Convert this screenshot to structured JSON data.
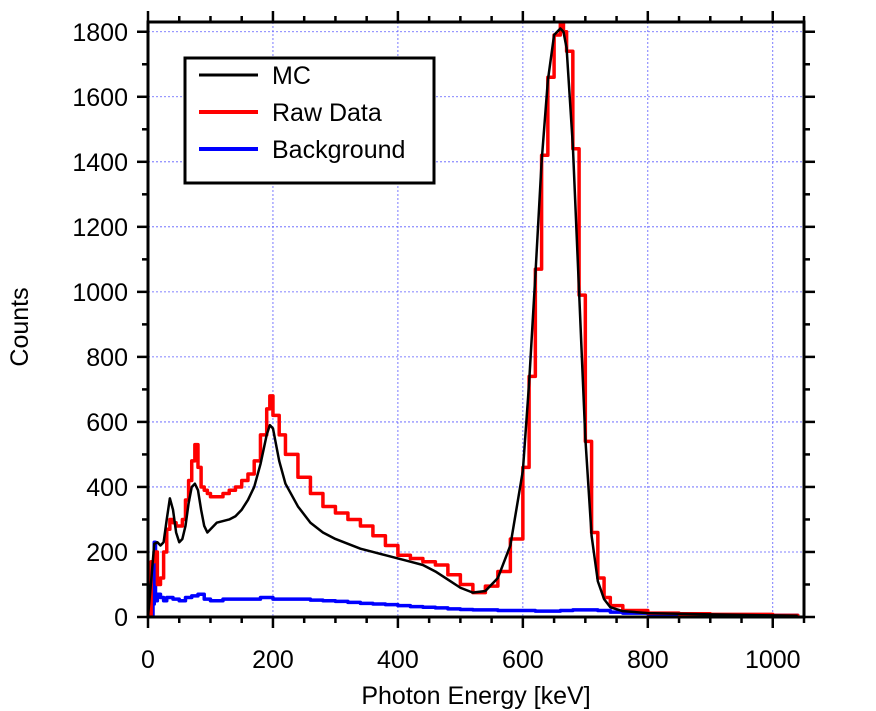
{
  "chart_data": {
    "type": "line",
    "title": "",
    "xlabel": "Photon Energy [keV]",
    "ylabel": "Counts",
    "xlim": [
      0,
      1050
    ],
    "ylim": [
      0,
      1830
    ],
    "x_ticks": [
      0,
      200,
      400,
      600,
      800,
      1000
    ],
    "y_ticks": [
      0,
      200,
      400,
      600,
      800,
      1000,
      1200,
      1400,
      1600,
      1800
    ],
    "grid": true,
    "legend_position": "top-left",
    "series": [
      {
        "name": "MC",
        "color": "#000000",
        "x": [
          0,
          5,
          10,
          15,
          20,
          25,
          30,
          35,
          40,
          45,
          50,
          55,
          60,
          65,
          70,
          75,
          80,
          85,
          90,
          95,
          100,
          110,
          120,
          130,
          140,
          150,
          160,
          170,
          180,
          190,
          195,
          200,
          210,
          220,
          240,
          260,
          280,
          300,
          320,
          340,
          360,
          380,
          400,
          420,
          440,
          460,
          480,
          500,
          520,
          540,
          560,
          580,
          600,
          610,
          620,
          630,
          640,
          650,
          660,
          665,
          670,
          680,
          690,
          700,
          710,
          720,
          730,
          740,
          760,
          800,
          850,
          900,
          1000,
          1040
        ],
        "y": [
          0,
          110,
          225,
          230,
          220,
          230,
          300,
          365,
          330,
          260,
          230,
          240,
          280,
          350,
          400,
          410,
          390,
          330,
          280,
          260,
          270,
          290,
          295,
          300,
          310,
          330,
          360,
          400,
          470,
          560,
          590,
          580,
          480,
          410,
          340,
          290,
          260,
          240,
          225,
          210,
          200,
          190,
          180,
          170,
          160,
          140,
          115,
          90,
          75,
          80,
          120,
          220,
          450,
          720,
          1050,
          1400,
          1650,
          1790,
          1810,
          1800,
          1750,
          1450,
          1000,
          550,
          250,
          110,
          55,
          30,
          18,
          12,
          10,
          8,
          5,
          4
        ]
      },
      {
        "name": "Raw Data",
        "color": "#ff0000",
        "x": [
          0,
          5,
          10,
          15,
          20,
          25,
          30,
          35,
          40,
          45,
          50,
          55,
          60,
          65,
          70,
          75,
          80,
          85,
          90,
          95,
          100,
          110,
          120,
          130,
          140,
          150,
          160,
          170,
          180,
          190,
          195,
          200,
          210,
          220,
          240,
          260,
          280,
          300,
          320,
          340,
          360,
          380,
          400,
          420,
          440,
          460,
          480,
          500,
          520,
          540,
          560,
          580,
          600,
          610,
          620,
          630,
          640,
          650,
          660,
          665,
          670,
          680,
          690,
          700,
          710,
          720,
          730,
          740,
          760,
          800,
          850,
          900,
          1000,
          1040
        ],
        "y": [
          0,
          170,
          200,
          100,
          120,
          200,
          270,
          300,
          290,
          280,
          280,
          300,
          360,
          420,
          480,
          530,
          460,
          400,
          390,
          380,
          370,
          370,
          380,
          390,
          400,
          420,
          440,
          480,
          560,
          640,
          680,
          620,
          560,
          500,
          430,
          380,
          340,
          320,
          300,
          280,
          250,
          220,
          190,
          180,
          170,
          160,
          130,
          100,
          75,
          95,
          140,
          240,
          460,
          740,
          1070,
          1420,
          1660,
          1790,
          1830,
          1800,
          1740,
          1440,
          990,
          540,
          260,
          120,
          60,
          35,
          20,
          12,
          10,
          8,
          5,
          4
        ]
      },
      {
        "name": "Background",
        "color": "#0000ff",
        "x": [
          0,
          5,
          8,
          10,
          12,
          15,
          20,
          25,
          30,
          40,
          50,
          60,
          70,
          80,
          90,
          100,
          120,
          140,
          160,
          180,
          200,
          220,
          240,
          260,
          280,
          300,
          320,
          340,
          360,
          380,
          400,
          420,
          440,
          460,
          480,
          500,
          520,
          540,
          560,
          580,
          600,
          620,
          640,
          660,
          680,
          700,
          720,
          740,
          760,
          800,
          850,
          900,
          1000,
          1040
        ],
        "y": [
          0,
          0,
          40,
          230,
          50,
          70,
          60,
          50,
          60,
          55,
          50,
          60,
          65,
          70,
          55,
          50,
          55,
          55,
          55,
          60,
          55,
          55,
          55,
          52,
          50,
          48,
          45,
          42,
          40,
          38,
          35,
          32,
          30,
          28,
          25,
          23,
          22,
          22,
          20,
          20,
          20,
          18,
          18,
          20,
          22,
          22,
          20,
          15,
          12,
          10,
          8,
          7,
          5,
          4
        ]
      }
    ]
  }
}
